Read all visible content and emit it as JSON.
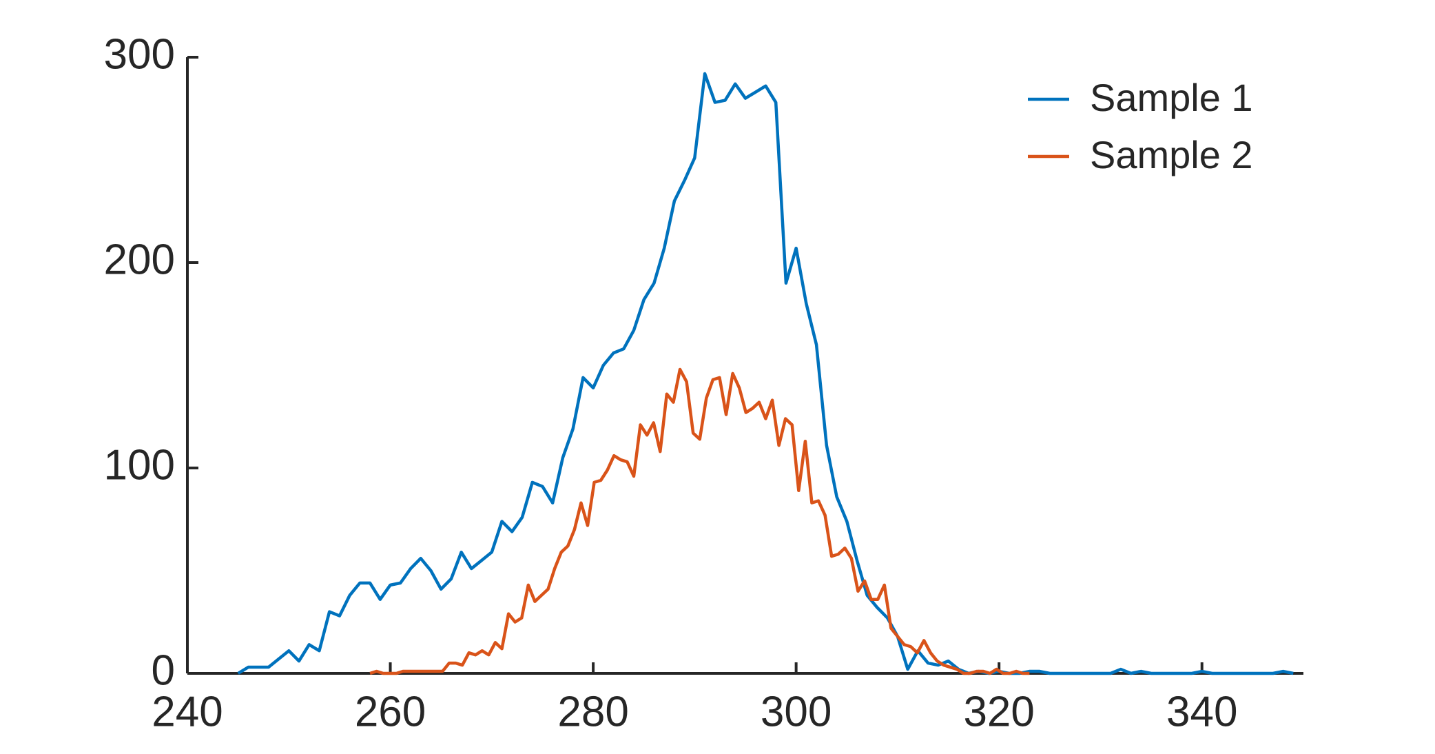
{
  "chart_data": {
    "type": "line",
    "xlim": [
      240,
      350
    ],
    "ylim": [
      0,
      300
    ],
    "xticks": [
      240,
      260,
      280,
      300,
      320,
      340
    ],
    "yticks": [
      0,
      100,
      200,
      300
    ],
    "legend": "upper right",
    "series": [
      {
        "name": "Sample 1",
        "color": "#0072BD",
        "x": [
          245,
          246,
          247,
          248,
          249,
          250,
          251,
          252,
          253,
          254,
          255,
          256,
          257,
          258,
          259,
          260,
          261,
          262,
          263,
          264,
          265,
          266,
          267,
          268,
          269,
          270,
          271,
          272,
          273,
          274,
          275,
          276,
          277,
          278,
          279,
          280,
          281,
          282,
          283,
          284,
          285,
          286,
          287,
          288,
          289,
          290,
          291,
          292,
          293,
          294,
          295,
          296,
          297,
          298,
          299,
          300,
          301,
          302,
          303,
          304,
          305,
          306,
          307,
          308,
          309,
          310,
          311,
          312,
          313,
          314,
          315,
          316,
          317,
          318,
          319,
          320,
          321,
          322,
          323,
          324,
          325,
          326,
          327,
          328,
          329,
          330,
          331,
          332,
          333,
          334,
          335,
          336,
          337,
          338,
          339,
          340,
          341,
          342,
          343,
          344,
          345,
          346,
          347,
          348,
          349
        ],
        "values": [
          0,
          3,
          3,
          3,
          7,
          11,
          6,
          14,
          11,
          30,
          28,
          38,
          44,
          44,
          36,
          43,
          44,
          51,
          56,
          50,
          41,
          46,
          59,
          51,
          55,
          59,
          74,
          69,
          76,
          93,
          91,
          83,
          105,
          119,
          144,
          139,
          150,
          156,
          158,
          167,
          182,
          190,
          207,
          230,
          240,
          251,
          292,
          278,
          279,
          287,
          280,
          283,
          286,
          278,
          190,
          207,
          180,
          160,
          111,
          86,
          74,
          55,
          38,
          32,
          27,
          18,
          2,
          11,
          5,
          4,
          6,
          2,
          0,
          1,
          0,
          1,
          0,
          0,
          1,
          1,
          0,
          0,
          0,
          0,
          0,
          0,
          0,
          2,
          0,
          1,
          0,
          0,
          0,
          0,
          0,
          1,
          0,
          0,
          0,
          0,
          0,
          0,
          0,
          1,
          0
        ]
      },
      {
        "name": "Sample 2",
        "color": "#D95319",
        "x": [
          258,
          258.65,
          259.3,
          259.95,
          260.6,
          261.25,
          261.9,
          262.55,
          263.2,
          263.85,
          264.5,
          265.15,
          265.8,
          266.45,
          267.1,
          267.75,
          268.4,
          269.05,
          269.7,
          270.35,
          271,
          271.65,
          272.3,
          272.95,
          273.6,
          274.25,
          274.9,
          275.55,
          276.2,
          276.85,
          277.5,
          278.15,
          278.8,
          279.45,
          280.1,
          280.75,
          281.4,
          282.05,
          282.7,
          283.35,
          284,
          284.65,
          285.3,
          285.95,
          286.6,
          287.25,
          287.9,
          288.55,
          289.2,
          289.85,
          290.5,
          291.15,
          291.8,
          292.45,
          293.1,
          293.75,
          294.4,
          295.05,
          295.7,
          296.35,
          297,
          297.65,
          298.3,
          298.95,
          299.6,
          300.25,
          300.9,
          301.55,
          302.2,
          302.85,
          303.5,
          304.15,
          304.8,
          305.45,
          306.1,
          306.75,
          307.4,
          308.05,
          308.7,
          309.35,
          310,
          310.65,
          311.3,
          311.95,
          312.6,
          313.25,
          313.9,
          314.55,
          315.2,
          315.85,
          316.5,
          317.15,
          317.8,
          318.45,
          319.1,
          319.75,
          320.4,
          321.05,
          321.7,
          322.35,
          323
        ],
        "values": [
          0,
          1,
          0,
          0,
          0,
          1,
          1,
          1,
          1,
          1,
          1,
          1,
          5,
          5,
          4,
          10,
          9,
          11,
          9,
          15,
          12,
          29,
          25,
          27,
          43,
          35,
          38,
          41,
          51,
          59,
          62,
          70,
          83,
          72,
          93,
          94,
          99,
          106,
          104,
          103,
          96,
          121,
          116,
          122,
          108,
          136,
          132,
          148,
          142,
          117,
          114,
          134,
          143,
          144,
          126,
          146,
          139,
          127,
          129,
          132,
          124,
          133,
          111,
          124,
          121,
          89,
          113,
          83,
          84,
          77,
          57,
          58,
          61,
          56,
          40,
          45,
          36,
          36,
          43,
          22,
          18,
          14,
          13,
          10,
          16,
          10,
          6,
          4,
          3,
          2,
          0,
          0,
          1,
          1,
          0,
          2,
          0,
          0,
          1,
          0,
          0
        ]
      }
    ]
  }
}
